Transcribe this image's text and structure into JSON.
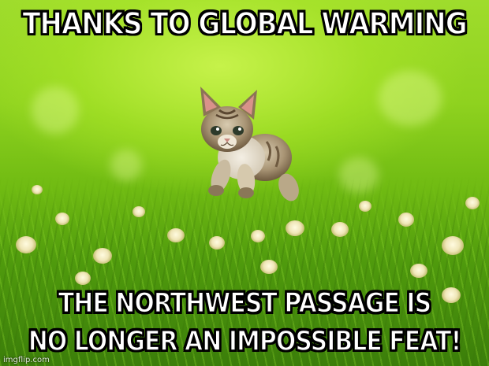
{
  "meme": {
    "top_text": "THANKS TO GLOBAL WARMING",
    "bottom_text_line1": "THE NORTHWEST PASSAGE IS",
    "bottom_text_line2": "NO LONGER AN IMPOSSIBLE FEAT!",
    "watermark": "imgflip.com",
    "image_subject": "kitten-leaping-through-grass-icon"
  },
  "colors": {
    "caption_fill": "#ffffff",
    "caption_outline": "#000000",
    "grass": "#6fba12"
  }
}
